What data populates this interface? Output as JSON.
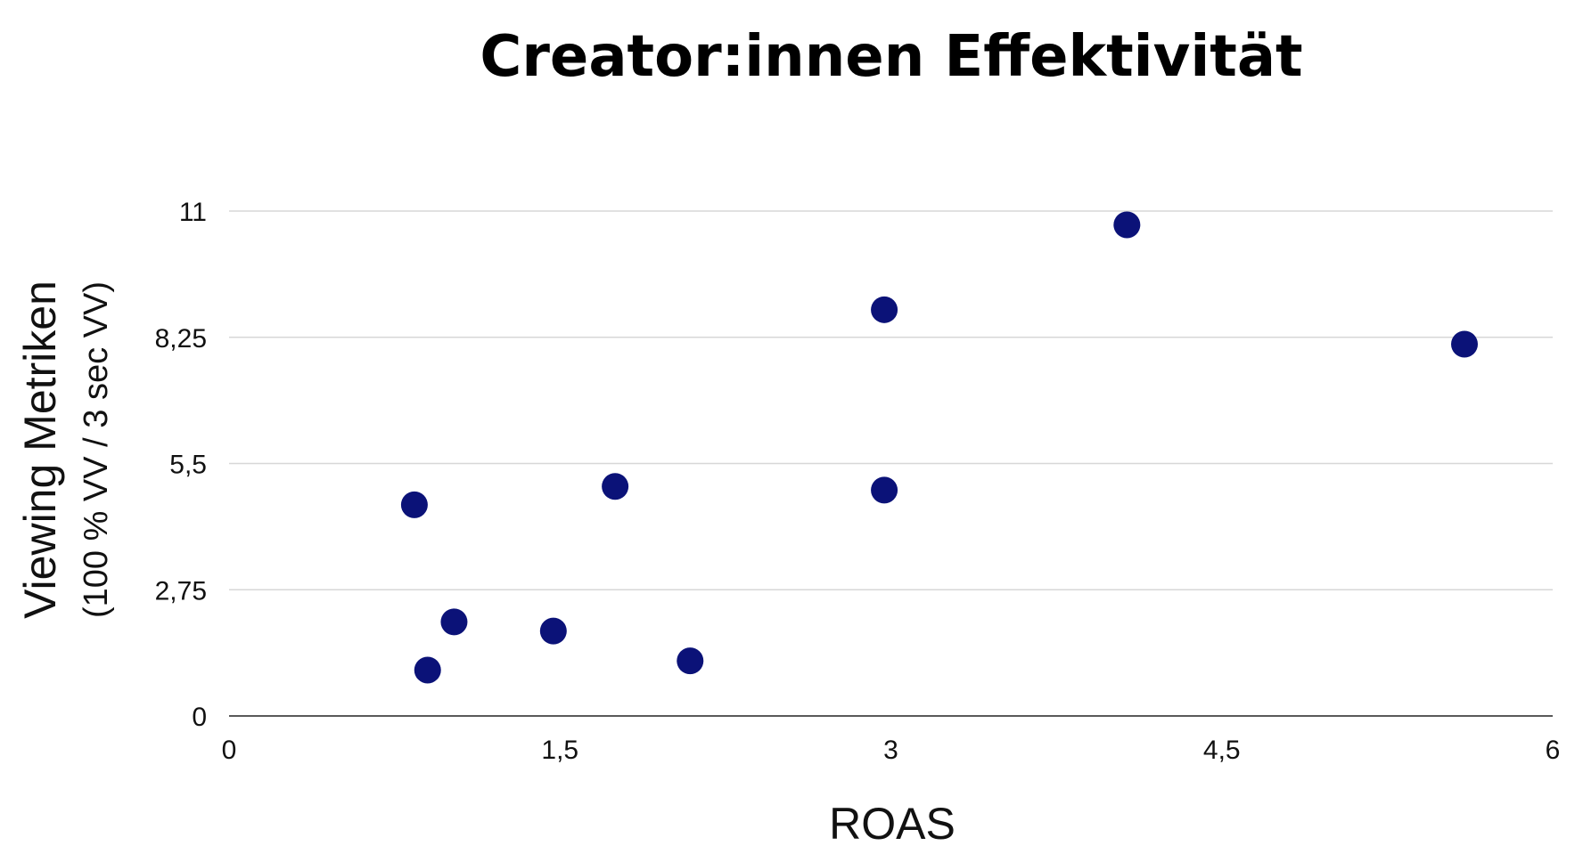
{
  "chart_data": {
    "type": "scatter",
    "title": "Creator:innen Effektivität",
    "xlabel": "ROAS",
    "ylabel": "Viewing Metriken",
    "ylabel_sub": "(100 % VV / 3 sec VV)",
    "xlim": [
      0,
      6
    ],
    "ylim": [
      0,
      11
    ],
    "x_ticks": [
      0,
      1.5,
      3,
      4.5,
      6
    ],
    "x_tick_labels": [
      "0",
      "1,5",
      "3",
      "4,5",
      "6"
    ],
    "y_ticks": [
      0,
      2.75,
      5.5,
      8.25,
      11
    ],
    "y_tick_labels": [
      "0",
      "2,75",
      "5,5",
      "8,25",
      "11"
    ],
    "grid": "horizontal",
    "legend": "none",
    "marker_color": "#0b1278",
    "series": [
      {
        "points": [
          {
            "x": 0.84,
            "y": 4.6
          },
          {
            "x": 0.9,
            "y": 1.0
          },
          {
            "x": 1.02,
            "y": 2.05
          },
          {
            "x": 1.47,
            "y": 1.85
          },
          {
            "x": 1.75,
            "y": 5.0
          },
          {
            "x": 2.09,
            "y": 1.2
          },
          {
            "x": 2.97,
            "y": 8.85
          },
          {
            "x": 2.97,
            "y": 4.92
          },
          {
            "x": 4.07,
            "y": 10.7
          },
          {
            "x": 5.6,
            "y": 8.1
          }
        ]
      }
    ]
  }
}
